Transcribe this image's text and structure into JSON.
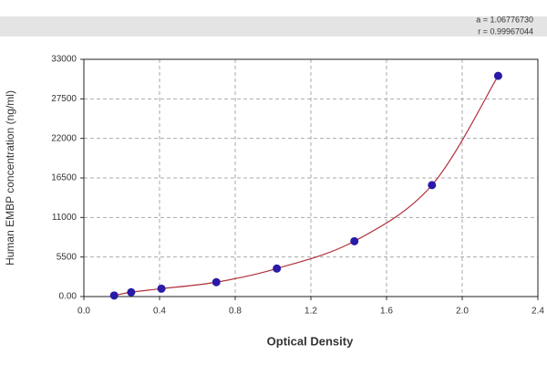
{
  "chart_data": {
    "type": "scatter",
    "x_label": "Optical Density",
    "y_label": "Human EMBP concentration (ng/ml)",
    "annotations": [
      "a = 1.06776730",
      "r = 0.99967044"
    ],
    "series": [
      {
        "color": "#2a1aa8",
        "line_color": "#b0303a",
        "x": [
          0.16,
          0.25,
          0.41,
          0.7,
          1.02,
          1.43,
          1.84,
          2.19
        ],
        "values": [
          150,
          600,
          1100,
          2000,
          3900,
          7700,
          15500,
          30700
        ]
      }
    ],
    "xlim": [
      0,
      2.4
    ],
    "xticks": [
      {
        "value": 0,
        "label": "0.0"
      },
      0.4,
      0.8,
      1.2,
      1.6,
      {
        "value": 2,
        "label": "2.0"
      },
      2.4
    ],
    "ylim": [
      0,
      33000
    ],
    "yticks": [
      {
        "value": 0,
        "label": "0.00"
      },
      5500,
      11000,
      16500,
      22000,
      27500,
      33000
    ],
    "grid": true
  }
}
